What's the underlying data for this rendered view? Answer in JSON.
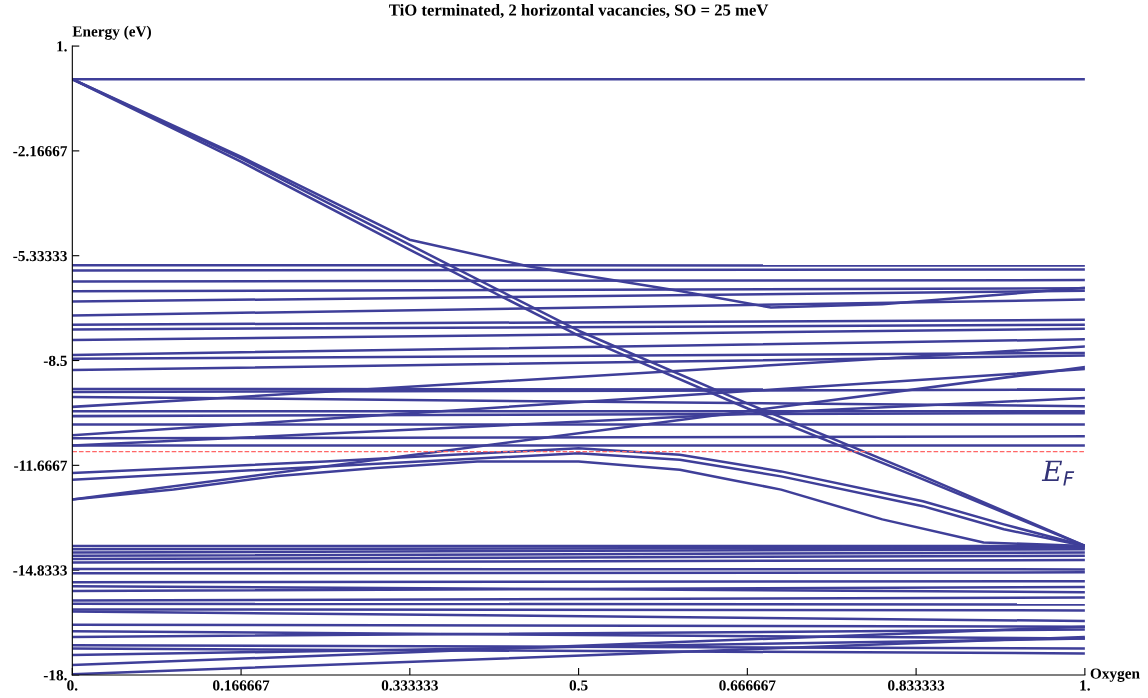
{
  "chart_data": {
    "type": "line",
    "title": "TiO terminated, 2 horizontal vacancies, SO = 25 meV",
    "xlabel": "Oxygen",
    "ylabel": "Energy (eV)",
    "xlim": [
      0,
      1
    ],
    "ylim": [
      -18,
      1
    ],
    "xticks": [
      {
        "value": 0,
        "label": "0."
      },
      0.166667,
      0.333333,
      0.5,
      0.666667,
      0.833333,
      {
        "value": 1,
        "label": "1."
      }
    ],
    "yticks": [
      {
        "value": 1,
        "label": "1."
      },
      -2.16667,
      -5.33333,
      -8.5,
      -11.6667,
      -14.8333,
      {
        "value": -18,
        "label": "-18."
      }
    ],
    "grid": false,
    "marker": "none",
    "line_style": "solid",
    "ref_lines": [
      {
        "axis": "y",
        "value": -11.25,
        "label": "E$_{F}$",
        "color": "#ff6666",
        "line_style": "dashed"
      }
    ],
    "series": [
      {
        "color": "#3f3f99",
        "x": [
          0,
          1
        ],
        "values": [
          0,
          0
        ]
      },
      {
        "color": "#3f3f99",
        "x": [
          0,
          0.167,
          0.333,
          0.5,
          0.667,
          0.833,
          1
        ],
        "values": [
          0,
          -2.4,
          -5.0,
          -7.6,
          -9.8,
          -11.9,
          -14.1
        ]
      },
      {
        "color": "#3f3f99",
        "x": [
          0,
          0.167,
          0.333,
          0.5,
          0.667,
          0.833,
          1
        ],
        "values": [
          0,
          -2.5,
          -5.15,
          -7.75,
          -9.95,
          -12.0,
          -14.1
        ]
      },
      {
        "color": "#3f3f99",
        "x": [
          0,
          0.167,
          0.333,
          0.45,
          0.5,
          0.6,
          0.69,
          0.8,
          0.9,
          1
        ],
        "values": [
          0,
          -2.35,
          -4.85,
          -5.65,
          -5.9,
          -6.4,
          -6.9,
          -6.8,
          -6.55,
          -6.3
        ]
      },
      {
        "color": "#3f3f99",
        "x": [
          0,
          0.25,
          0.5,
          0.6,
          0.7,
          0.84,
          0.92,
          1
        ],
        "values": [
          -11.9,
          -11.55,
          -11.15,
          -11.35,
          -11.85,
          -12.75,
          -13.45,
          -14.1
        ]
      },
      {
        "color": "#3f3f99",
        "x": [
          0,
          0.25,
          0.5,
          0.6,
          0.7,
          0.84,
          0.92,
          1
        ],
        "values": [
          -12.1,
          -11.7,
          -11.3,
          -11.5,
          -12.0,
          -12.9,
          -13.6,
          -14.1
        ]
      },
      {
        "color": "#3f3f99",
        "x": [
          0,
          0.1,
          0.2,
          0.3,
          0.4,
          0.5,
          0.6,
          0.65,
          0.7,
          0.8,
          0.9,
          1
        ],
        "values": [
          -12.7,
          -12.4,
          -12.0,
          -11.75,
          -11.55,
          -11.55,
          -11.8,
          -12.1,
          -12.4,
          -13.3,
          -14.0,
          -14.1
        ]
      },
      {
        "color": "#3f3f99",
        "x": [
          0,
          1
        ],
        "values": [
          -12.7,
          -8.7
        ]
      },
      {
        "color": "#3f3f99",
        "x": [
          0,
          1
        ],
        "values": [
          -11.07,
          -9.63
        ]
      },
      {
        "color": "#3f3f99",
        "x": [
          0,
          1
        ],
        "values": [
          -10.76,
          -8.76
        ]
      },
      {
        "color": "#3f3f99",
        "x": [
          0,
          1
        ],
        "values": [
          -9.9,
          -8.08
        ]
      },
      {
        "color": "#3f3f99",
        "x": [
          0,
          1
        ],
        "values": [
          -5.62,
          -5.63
        ]
      },
      {
        "color": "#3f3f99",
        "x": [
          0,
          1
        ],
        "values": [
          -5.78,
          -5.75
        ]
      },
      {
        "color": "#3f3f99",
        "x": [
          0,
          1
        ],
        "values": [
          -6.11,
          -6.07
        ]
      },
      {
        "color": "#3f3f99",
        "x": [
          0,
          1
        ],
        "values": [
          -6.41,
          -6.32
        ]
      },
      {
        "color": "#3f3f99",
        "x": [
          0,
          1
        ],
        "values": [
          -6.72,
          -6.39
        ]
      },
      {
        "color": "#3f3f99",
        "x": [
          0,
          1
        ],
        "values": [
          -7.14,
          -6.66
        ]
      },
      {
        "color": "#3f3f99",
        "x": [
          0,
          1
        ],
        "values": [
          -7.42,
          -7.27
        ]
      },
      {
        "color": "#3f3f99",
        "x": [
          0,
          1
        ],
        "values": [
          -7.56,
          -7.42
        ]
      },
      {
        "color": "#3f3f99",
        "x": [
          0,
          1
        ],
        "values": [
          -7.88,
          -7.54
        ]
      },
      {
        "color": "#3f3f99",
        "x": [
          0,
          1
        ],
        "values": [
          -8.33,
          -7.86
        ]
      },
      {
        "color": "#3f3f99",
        "x": [
          0,
          1
        ],
        "values": [
          -8.45,
          -8.27
        ]
      },
      {
        "color": "#3f3f99",
        "x": [
          0,
          1
        ],
        "values": [
          -8.79,
          -8.35
        ]
      },
      {
        "color": "#3f3f99",
        "x": [
          0,
          1
        ],
        "values": [
          -9.36,
          -9.38
        ]
      },
      {
        "color": "#3f3f99",
        "x": [
          0,
          1
        ],
        "values": [
          -9.45,
          -9.38
        ]
      },
      {
        "color": "#3f3f99",
        "x": [
          0,
          1
        ],
        "values": [
          -9.6,
          -9.88
        ]
      },
      {
        "color": "#3f3f99",
        "x": [
          0,
          1
        ],
        "values": [
          -10.03,
          -10.03
        ]
      },
      {
        "color": "#3f3f99",
        "x": [
          0,
          1
        ],
        "values": [
          -10.18,
          -10.09
        ]
      },
      {
        "color": "#3f3f99",
        "x": [
          0,
          1
        ],
        "values": [
          -10.43,
          -10.43
        ]
      },
      {
        "color": "#3f3f99",
        "x": [
          0,
          1
        ],
        "values": [
          -10.85,
          -10.79
        ]
      },
      {
        "color": "#3f3f99",
        "x": [
          0,
          1
        ],
        "values": [
          -11.07,
          -11.07
        ]
      },
      {
        "color": "#3f3f99",
        "x": [
          0,
          1
        ],
        "values": [
          -14.1,
          -14.1
        ]
      },
      {
        "color": "#3f3f99",
        "x": [
          0,
          1
        ],
        "values": [
          -14.2,
          -14.15
        ]
      },
      {
        "color": "#3f3f99",
        "x": [
          0,
          1
        ],
        "values": [
          -14.3,
          -14.2
        ]
      },
      {
        "color": "#3f3f99",
        "x": [
          0,
          1
        ],
        "values": [
          -14.4,
          -14.3
        ]
      },
      {
        "color": "#3f3f99",
        "x": [
          0,
          1
        ],
        "values": [
          -14.5,
          -14.4
        ]
      },
      {
        "color": "#3f3f99",
        "x": [
          0,
          1
        ],
        "values": [
          -14.6,
          -14.53
        ]
      },
      {
        "color": "#3f3f99",
        "x": [
          0,
          1
        ],
        "values": [
          -14.8,
          -14.81
        ]
      },
      {
        "color": "#3f3f99",
        "x": [
          0,
          1
        ],
        "values": [
          -14.93,
          -14.9
        ]
      },
      {
        "color": "#3f3f99",
        "x": [
          0,
          1
        ],
        "values": [
          -15.2,
          -15.17
        ]
      },
      {
        "color": "#3f3f99",
        "x": [
          0,
          1
        ],
        "values": [
          -15.32,
          -15.5
        ]
      },
      {
        "color": "#3f3f99",
        "x": [
          0,
          1
        ],
        "values": [
          -15.46,
          -15.34
        ]
      },
      {
        "color": "#3f3f99",
        "x": [
          0,
          1
        ],
        "values": [
          -15.75,
          -15.66
        ]
      },
      {
        "color": "#3f3f99",
        "x": [
          0,
          1
        ],
        "values": [
          -15.85,
          -15.87
        ]
      },
      {
        "color": "#3f3f99",
        "x": [
          0,
          1
        ],
        "values": [
          -16.02,
          -16.05
        ]
      },
      {
        "color": "#3f3f99",
        "x": [
          0,
          1
        ],
        "values": [
          -16.08,
          -16.37
        ]
      },
      {
        "color": "#3f3f99",
        "x": [
          0,
          1
        ],
        "values": [
          -16.48,
          -16.54
        ]
      },
      {
        "color": "#3f3f99",
        "x": [
          0,
          1
        ],
        "values": [
          -16.68,
          -16.9
        ]
      },
      {
        "color": "#3f3f99",
        "x": [
          0,
          1
        ],
        "values": [
          -16.85,
          -16.63
        ]
      },
      {
        "color": "#3f3f99",
        "x": [
          0,
          1
        ],
        "values": [
          -17.1,
          -17.2
        ]
      },
      {
        "color": "#3f3f99",
        "x": [
          0,
          1
        ],
        "values": [
          -17.2,
          -17.35
        ]
      },
      {
        "color": "#3f3f99",
        "x": [
          0,
          1
        ],
        "values": [
          -17.4,
          -16.9
        ]
      },
      {
        "color": "#3f3f99",
        "x": [
          0,
          1
        ],
        "values": [
          -17.7,
          -16.54
        ]
      },
      {
        "color": "#3f3f99",
        "x": [
          0,
          1
        ],
        "values": [
          -17.98,
          -16.85
        ]
      }
    ]
  }
}
